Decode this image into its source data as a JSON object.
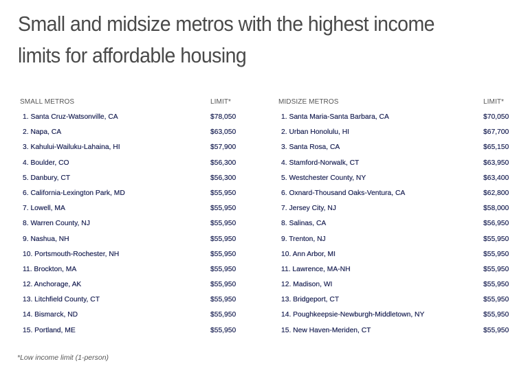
{
  "title": "Small and midsize metros with the highest income limits for affordable housing",
  "footnote": "*Low income limit (1-person)",
  "small": {
    "header_name": "SMALL METROS",
    "header_limit": "LIMIT*",
    "rows": [
      {
        "name": "1. Santa Cruz-Watsonville, CA",
        "limit": "$78,050"
      },
      {
        "name": "2. Napa, CA",
        "limit": "$63,050"
      },
      {
        "name": "3. Kahului-Wailuku-Lahaina, HI",
        "limit": "$57,900"
      },
      {
        "name": "4. Boulder, CO",
        "limit": "$56,300"
      },
      {
        "name": "5. Danbury, CT",
        "limit": "$56,300"
      },
      {
        "name": "6. California-Lexington Park, MD",
        "limit": "$55,950"
      },
      {
        "name": "7. Lowell, MA",
        "limit": "$55,950"
      },
      {
        "name": "8. Warren County, NJ",
        "limit": "$55,950"
      },
      {
        "name": "9. Nashua, NH",
        "limit": "$55,950"
      },
      {
        "name": "10. Portsmouth-Rochester, NH",
        "limit": "$55,950"
      },
      {
        "name": "11. Brockton, MA",
        "limit": "$55,950"
      },
      {
        "name": "12. Anchorage, AK",
        "limit": "$55,950"
      },
      {
        "name": "13. Litchfield County, CT",
        "limit": "$55,950"
      },
      {
        "name": "14. Bismarck, ND",
        "limit": "$55,950"
      },
      {
        "name": "15. Portland, ME",
        "limit": "$55,950"
      }
    ]
  },
  "midsize": {
    "header_name": "MIDSIZE METROS",
    "header_limit": "LIMIT*",
    "rows": [
      {
        "name": "1. Santa Maria-Santa Barbara, CA",
        "limit": "$70,050"
      },
      {
        "name": "2. Urban Honolulu, HI",
        "limit": "$67,700"
      },
      {
        "name": "3. Santa Rosa, CA",
        "limit": "$65,150"
      },
      {
        "name": "4. Stamford-Norwalk, CT",
        "limit": "$63,950"
      },
      {
        "name": "5. Westchester County, NY",
        "limit": "$63,400"
      },
      {
        "name": "6. Oxnard-Thousand Oaks-Ventura, CA",
        "limit": "$62,800"
      },
      {
        "name": "7. Jersey City, NJ",
        "limit": "$58,000"
      },
      {
        "name": "8. Salinas, CA",
        "limit": "$56,950"
      },
      {
        "name": "9. Trenton, NJ",
        "limit": "$55,950"
      },
      {
        "name": "10. Ann Arbor, MI",
        "limit": "$55,950"
      },
      {
        "name": "11. Lawrence, MA-NH",
        "limit": "$55,950"
      },
      {
        "name": "12. Madison, WI",
        "limit": "$55,950"
      },
      {
        "name": "13. Bridgeport, CT",
        "limit": "$55,950"
      },
      {
        "name": "14. Poughkeepsie-Newburgh-Middletown, NY",
        "limit": "$55,950"
      },
      {
        "name": "15. New Haven-Meriden, CT",
        "limit": "$55,950"
      }
    ]
  },
  "chart_data": {
    "type": "table",
    "title": "Small and midsize metros with the highest income limits for affordable housing",
    "footnote": "*Low income limit (1-person)",
    "tables": [
      {
        "name": "Small metros",
        "columns": [
          "SMALL METROS",
          "LIMIT*"
        ],
        "rows": [
          [
            "Santa Cruz-Watsonville, CA",
            78050
          ],
          [
            "Napa, CA",
            63050
          ],
          [
            "Kahului-Wailuku-Lahaina, HI",
            57900
          ],
          [
            "Boulder, CO",
            56300
          ],
          [
            "Danbury, CT",
            56300
          ],
          [
            "California-Lexington Park, MD",
            55950
          ],
          [
            "Lowell, MA",
            55950
          ],
          [
            "Warren County, NJ",
            55950
          ],
          [
            "Nashua, NH",
            55950
          ],
          [
            "Portsmouth-Rochester, NH",
            55950
          ],
          [
            "Brockton, MA",
            55950
          ],
          [
            "Anchorage, AK",
            55950
          ],
          [
            "Litchfield County, CT",
            55950
          ],
          [
            "Bismarck, ND",
            55950
          ],
          [
            "Portland, ME",
            55950
          ]
        ]
      },
      {
        "name": "Midsize metros",
        "columns": [
          "MIDSIZE METROS",
          "LIMIT*"
        ],
        "rows": [
          [
            "Santa Maria-Santa Barbara, CA",
            70050
          ],
          [
            "Urban Honolulu, HI",
            67700
          ],
          [
            "Santa Rosa, CA",
            65150
          ],
          [
            "Stamford-Norwalk, CT",
            63950
          ],
          [
            "Westchester County, NY",
            63400
          ],
          [
            "Oxnard-Thousand Oaks-Ventura, CA",
            62800
          ],
          [
            "Jersey City, NJ",
            58000
          ],
          [
            "Salinas, CA",
            56950
          ],
          [
            "Trenton, NJ",
            55950
          ],
          [
            "Ann Arbor, MI",
            55950
          ],
          [
            "Lawrence, MA-NH",
            55950
          ],
          [
            "Madison, WI",
            55950
          ],
          [
            "Bridgeport, CT",
            55950
          ],
          [
            "Poughkeepsie-Newburgh-Middletown, NY",
            55950
          ],
          [
            "New Haven-Meriden, CT",
            55950
          ]
        ]
      }
    ]
  }
}
